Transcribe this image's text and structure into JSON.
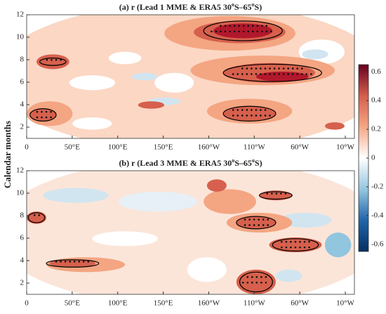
{
  "chart_data": [
    {
      "type": "contour",
      "title_parts": [
        "(a) r (Lead 1 MME & ERA5  30",
        "o",
        "S–65",
        "o",
        "S)"
      ],
      "xlim": [
        0,
        360
      ],
      "xticks": [
        0,
        {
          "value": 50,
          "label": "50°E"
        },
        {
          "value": 100,
          "label": "100°E"
        },
        {
          "value": 150,
          "label": "150°E"
        },
        {
          "value": 200,
          "label": "160°W"
        },
        {
          "value": 250,
          "label": "110°W"
        },
        {
          "value": 300,
          "label": "60°W"
        },
        {
          "value": 350,
          "label": "10°W"
        }
      ],
      "ylim": [
        1,
        12
      ],
      "yticks": [
        2,
        4,
        6,
        8,
        10,
        12
      ]
    },
    {
      "type": "contour",
      "title_parts": [
        "(b) r (Lead 3 MME & ERA5  30",
        "o",
        "S–65",
        "o",
        "S)"
      ],
      "xlim": [
        0,
        360
      ],
      "xticks": [
        0,
        {
          "value": 50,
          "label": "50°E"
        },
        {
          "value": 100,
          "label": "100°E"
        },
        {
          "value": 150,
          "label": "150°E"
        },
        {
          "value": 200,
          "label": "160°W"
        },
        {
          "value": 250,
          "label": "110°W"
        },
        {
          "value": 300,
          "label": "60°W"
        },
        {
          "value": 350,
          "label": "10°W"
        }
      ],
      "ylim": [
        1,
        12
      ],
      "yticks": [
        2,
        4,
        6,
        8,
        10,
        12
      ]
    }
  ],
  "y_label": "Calendar months",
  "colorbar": {
    "lim": [
      -0.65,
      0.65
    ],
    "ticks": [
      0.6,
      0.4,
      0.2,
      0,
      -0.2,
      -0.4,
      -0.6
    ]
  }
}
